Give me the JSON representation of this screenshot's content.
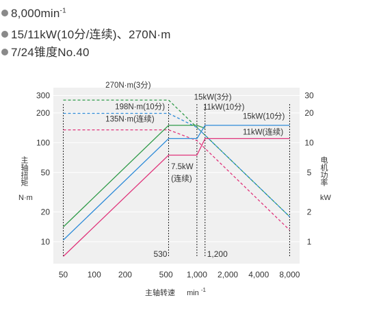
{
  "specs": {
    "speed": {
      "text": "8,000min",
      "sup": "-1"
    },
    "power": "15/11kW(10分/连续)、270N·m",
    "taper": "7/24锥度No.40"
  },
  "colors": {
    "green": "#2e9a48",
    "blue": "#2c8ad8",
    "pink": "#e0337a",
    "plot_bg": "#f0f0f0",
    "axis_text": "#333333",
    "gridline": "#ffffff"
  },
  "chart_data": {
    "type": "line",
    "scale": "log-log",
    "xlabel": "主轴转速",
    "xunit": "min",
    "xunit_sup": "-1",
    "ylabel_left": "主轴扭矩",
    "yunit_left": "N·m",
    "ylabel_right": "电机功率",
    "yunit_right": "kW",
    "xlim": [
      40,
      10000
    ],
    "ylim_left": [
      6,
      360
    ],
    "ylim_right": [
      0.6,
      36
    ],
    "x_ticks": [
      {
        "value": 50,
        "label": "50"
      },
      {
        "value": 100,
        "label": "100"
      },
      {
        "value": 200,
        "label": "200"
      },
      {
        "value": 500,
        "label": "500"
      },
      {
        "value": 1000,
        "label": "1,000"
      },
      {
        "value": 2000,
        "label": "2,000"
      },
      {
        "value": 4000,
        "label": "4,000"
      },
      {
        "value": 8000,
        "label": "8,000"
      }
    ],
    "y_ticks_left": [
      {
        "value": 10,
        "label": "10"
      },
      {
        "value": 20,
        "label": "20"
      },
      {
        "value": 50,
        "label": "50"
      },
      {
        "value": 100,
        "label": "100"
      },
      {
        "value": 200,
        "label": "200"
      },
      {
        "value": 300,
        "label": "300"
      }
    ],
    "y_ticks_right": [
      {
        "value": 1,
        "label": "1"
      },
      {
        "value": 2,
        "label": "2"
      },
      {
        "value": 5,
        "label": "5"
      },
      {
        "value": 10,
        "label": "10"
      },
      {
        "value": 20,
        "label": "20"
      },
      {
        "value": 30,
        "label": "30"
      }
    ],
    "series": [
      {
        "name": "270N·m(3分)",
        "color": "green",
        "axis": "left",
        "dashed": true,
        "points": [
          [
            50,
            270
          ],
          [
            530,
            270
          ],
          [
            1000,
            143
          ],
          [
            8000,
            17.9
          ]
        ]
      },
      {
        "name": "198N·m(10分)",
        "color": "blue",
        "axis": "left",
        "dashed": true,
        "points": [
          [
            50,
            198
          ],
          [
            530,
            198
          ],
          [
            1000,
            143
          ],
          [
            8000,
            17.9
          ]
        ]
      },
      {
        "name": "135N·m(连续)",
        "color": "pink",
        "axis": "left",
        "dashed": true,
        "points": [
          [
            50,
            135
          ],
          [
            530,
            135
          ],
          [
            1000,
            105
          ],
          [
            8000,
            13.1
          ]
        ]
      },
      {
        "name": "15kW(3分)",
        "color": "green",
        "axis": "right",
        "dashed": false,
        "points": [
          [
            50,
            1.41
          ],
          [
            530,
            15
          ],
          [
            1000,
            15
          ],
          [
            1200,
            14
          ]
        ]
      },
      {
        "name": "11kW(10分)",
        "color": "blue",
        "axis": "right",
        "dashed": false,
        "points": [
          [
            50,
            1.04
          ],
          [
            530,
            11
          ],
          [
            1000,
            11
          ],
          [
            1200,
            15
          ],
          [
            8000,
            15
          ]
        ]
      },
      {
        "name": "7.5kW(连续)",
        "color": "pink",
        "axis": "right",
        "dashed": false,
        "points": [
          [
            50,
            0.71
          ],
          [
            530,
            7.5
          ],
          [
            1000,
            7.5
          ],
          [
            1200,
            11
          ],
          [
            8000,
            11
          ]
        ]
      }
    ],
    "labels": [
      {
        "text": "270N·m(3分)",
        "color": "axis_text"
      },
      {
        "text": "198N·m(10分)",
        "color": "axis_text"
      },
      {
        "text": "135N·m(连续)",
        "color": "axis_text"
      },
      {
        "text": "15kW(3分)",
        "color": "axis_text"
      },
      {
        "text": "11kW(10分)",
        "color": "axis_text"
      },
      {
        "text": "15kW(10分)",
        "color": "axis_text"
      },
      {
        "text": "11kW(连续)",
        "color": "axis_text"
      },
      {
        "text": "7.5kW",
        "color": "axis_text"
      },
      {
        "text": "(连续)",
        "color": "axis_text"
      }
    ],
    "vlines": [
      {
        "value": 50
      },
      {
        "value": 530,
        "label": "530"
      },
      {
        "value": 1000
      },
      {
        "value": 1200,
        "label": "1,200"
      },
      {
        "value": 8000
      }
    ]
  }
}
